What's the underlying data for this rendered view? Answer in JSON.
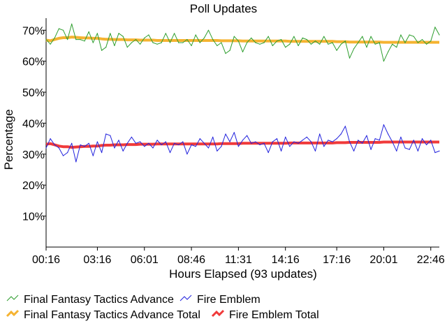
{
  "chart_data": {
    "type": "line",
    "title": "Poll Updates",
    "xlabel": "Hours Elapsed (93 updates)",
    "ylabel": "Percentage",
    "ylim": [
      0,
      73
    ],
    "yticks": [
      10,
      20,
      30,
      40,
      50,
      60,
      70
    ],
    "ytick_labels": [
      "10%",
      "20%",
      "30%",
      "40%",
      "50%",
      "60%",
      "70%"
    ],
    "x_tick_labels": [
      "00:16",
      "03:16",
      "06:01",
      "08:46",
      "11:31",
      "14:16",
      "17:16",
      "20:01",
      "22:46"
    ],
    "x_tick_indices": [
      0,
      12,
      23,
      34,
      45,
      56,
      68,
      79,
      90
    ],
    "x_count": 93,
    "grid": false,
    "legend_position": "bottom",
    "series": [
      {
        "name": "Final Fantasy Tactics Advance",
        "color": "#2e9e2e",
        "style": "thin",
        "values": [
          67,
          65.5,
          67.5,
          70.5,
          70,
          67,
          72,
          67,
          67,
          66.5,
          69.5,
          66,
          69,
          63.5,
          64.5,
          69,
          65,
          69,
          68,
          64.5,
          66,
          67,
          65.5,
          67.5,
          68.5,
          66,
          65.5,
          66,
          69,
          66,
          69,
          66,
          66,
          67,
          65,
          68.5,
          66,
          67.5,
          70,
          67,
          65,
          66,
          62.5,
          63.5,
          68,
          66.5,
          63,
          66,
          67.5,
          66,
          65.5,
          66,
          68,
          65,
          66.5,
          67,
          64.5,
          65.5,
          68,
          65,
          67.5,
          67,
          65.5,
          66.5,
          65.5,
          68,
          65.5,
          66,
          63.5,
          65.5,
          66.5,
          61,
          64,
          66,
          68,
          64.5,
          68,
          65.5,
          66,
          60,
          63,
          65.5,
          64.5,
          68.5,
          66,
          68.5,
          68,
          66,
          67,
          65.5,
          66.5,
          71,
          68.5
        ]
      },
      {
        "name": "Fire Emblem",
        "color": "#2222dd",
        "style": "thin",
        "values": [
          32,
          35,
          33,
          32,
          29.5,
          30.5,
          33.5,
          27.5,
          33,
          32.5,
          33.5,
          29.5,
          34,
          30.5,
          36.5,
          36,
          32,
          34.5,
          31,
          33.5,
          35.5,
          33.5,
          34,
          32.5,
          33.5,
          32,
          34.5,
          33,
          34,
          30.5,
          33.5,
          33,
          34,
          30,
          33,
          32.5,
          35,
          33.5,
          32,
          35.5,
          31,
          32.5,
          36.5,
          34,
          37,
          32.5,
          34.5,
          36,
          33.5,
          34,
          33,
          33.5,
          30.5,
          34,
          35,
          31,
          35.5,
          32.5,
          34,
          33.5,
          34.5,
          35.5,
          34,
          31,
          36.5,
          32.5,
          34.5,
          34,
          35,
          36.5,
          39,
          34,
          31,
          34.5,
          33.5,
          36,
          31.5,
          35,
          34.5,
          39.5,
          36.5,
          34,
          31,
          35.5,
          32,
          31.5,
          34.5,
          31,
          35,
          33,
          34.5,
          30.5,
          31
        ]
      },
      {
        "name": "Final Fantasy Tactics Advance Total",
        "color": "#f5b331",
        "style": "thick",
        "values": [
          66.8,
          66.6,
          67.0,
          67.4,
          67.6,
          67.6,
          67.8,
          67.7,
          67.6,
          67.5,
          67.5,
          67.4,
          67.4,
          67.2,
          67.1,
          67.1,
          67.0,
          67.0,
          67.0,
          66.9,
          66.9,
          66.9,
          66.8,
          66.8,
          66.8,
          66.8,
          66.7,
          66.7,
          66.7,
          66.7,
          66.7,
          66.7,
          66.7,
          66.7,
          66.7,
          66.7,
          66.7,
          66.7,
          66.7,
          66.7,
          66.7,
          66.6,
          66.6,
          66.6,
          66.6,
          66.6,
          66.5,
          66.5,
          66.5,
          66.5,
          66.5,
          66.5,
          66.5,
          66.5,
          66.5,
          66.5,
          66.5,
          66.4,
          66.4,
          66.4,
          66.4,
          66.4,
          66.4,
          66.4,
          66.4,
          66.4,
          66.4,
          66.4,
          66.3,
          66.3,
          66.3,
          66.2,
          66.2,
          66.2,
          66.2,
          66.2,
          66.2,
          66.2,
          66.2,
          66.1,
          66.1,
          66.1,
          66.1,
          66.1,
          66.1,
          66.1,
          66.1,
          66.1,
          66.1,
          66.1,
          66.1,
          66.1,
          66.1
        ]
      },
      {
        "name": "Fire Emblem Total",
        "color": "#f03a3a",
        "style": "thick",
        "values": [
          33.2,
          33.4,
          33.0,
          32.6,
          32.4,
          32.4,
          32.2,
          32.3,
          32.4,
          32.5,
          32.5,
          32.6,
          32.6,
          32.8,
          32.9,
          32.9,
          33.0,
          33.0,
          33.0,
          33.1,
          33.1,
          33.1,
          33.2,
          33.2,
          33.2,
          33.2,
          33.3,
          33.3,
          33.3,
          33.3,
          33.3,
          33.3,
          33.3,
          33.3,
          33.3,
          33.3,
          33.3,
          33.3,
          33.3,
          33.3,
          33.3,
          33.4,
          33.4,
          33.4,
          33.4,
          33.4,
          33.5,
          33.5,
          33.5,
          33.5,
          33.5,
          33.5,
          33.5,
          33.5,
          33.5,
          33.5,
          33.5,
          33.6,
          33.6,
          33.6,
          33.6,
          33.6,
          33.6,
          33.6,
          33.6,
          33.6,
          33.6,
          33.6,
          33.7,
          33.7,
          33.7,
          33.8,
          33.8,
          33.8,
          33.8,
          33.8,
          33.8,
          33.8,
          33.8,
          33.9,
          33.9,
          33.9,
          33.9,
          33.9,
          33.9,
          33.9,
          33.9,
          33.9,
          33.9,
          33.9,
          33.9,
          33.9,
          33.9
        ]
      }
    ],
    "legend_rows": [
      [
        "Final Fantasy Tactics Advance",
        "Fire Emblem"
      ],
      [
        "Final Fantasy Tactics Advance Total",
        "Fire Emblem Total"
      ]
    ]
  }
}
